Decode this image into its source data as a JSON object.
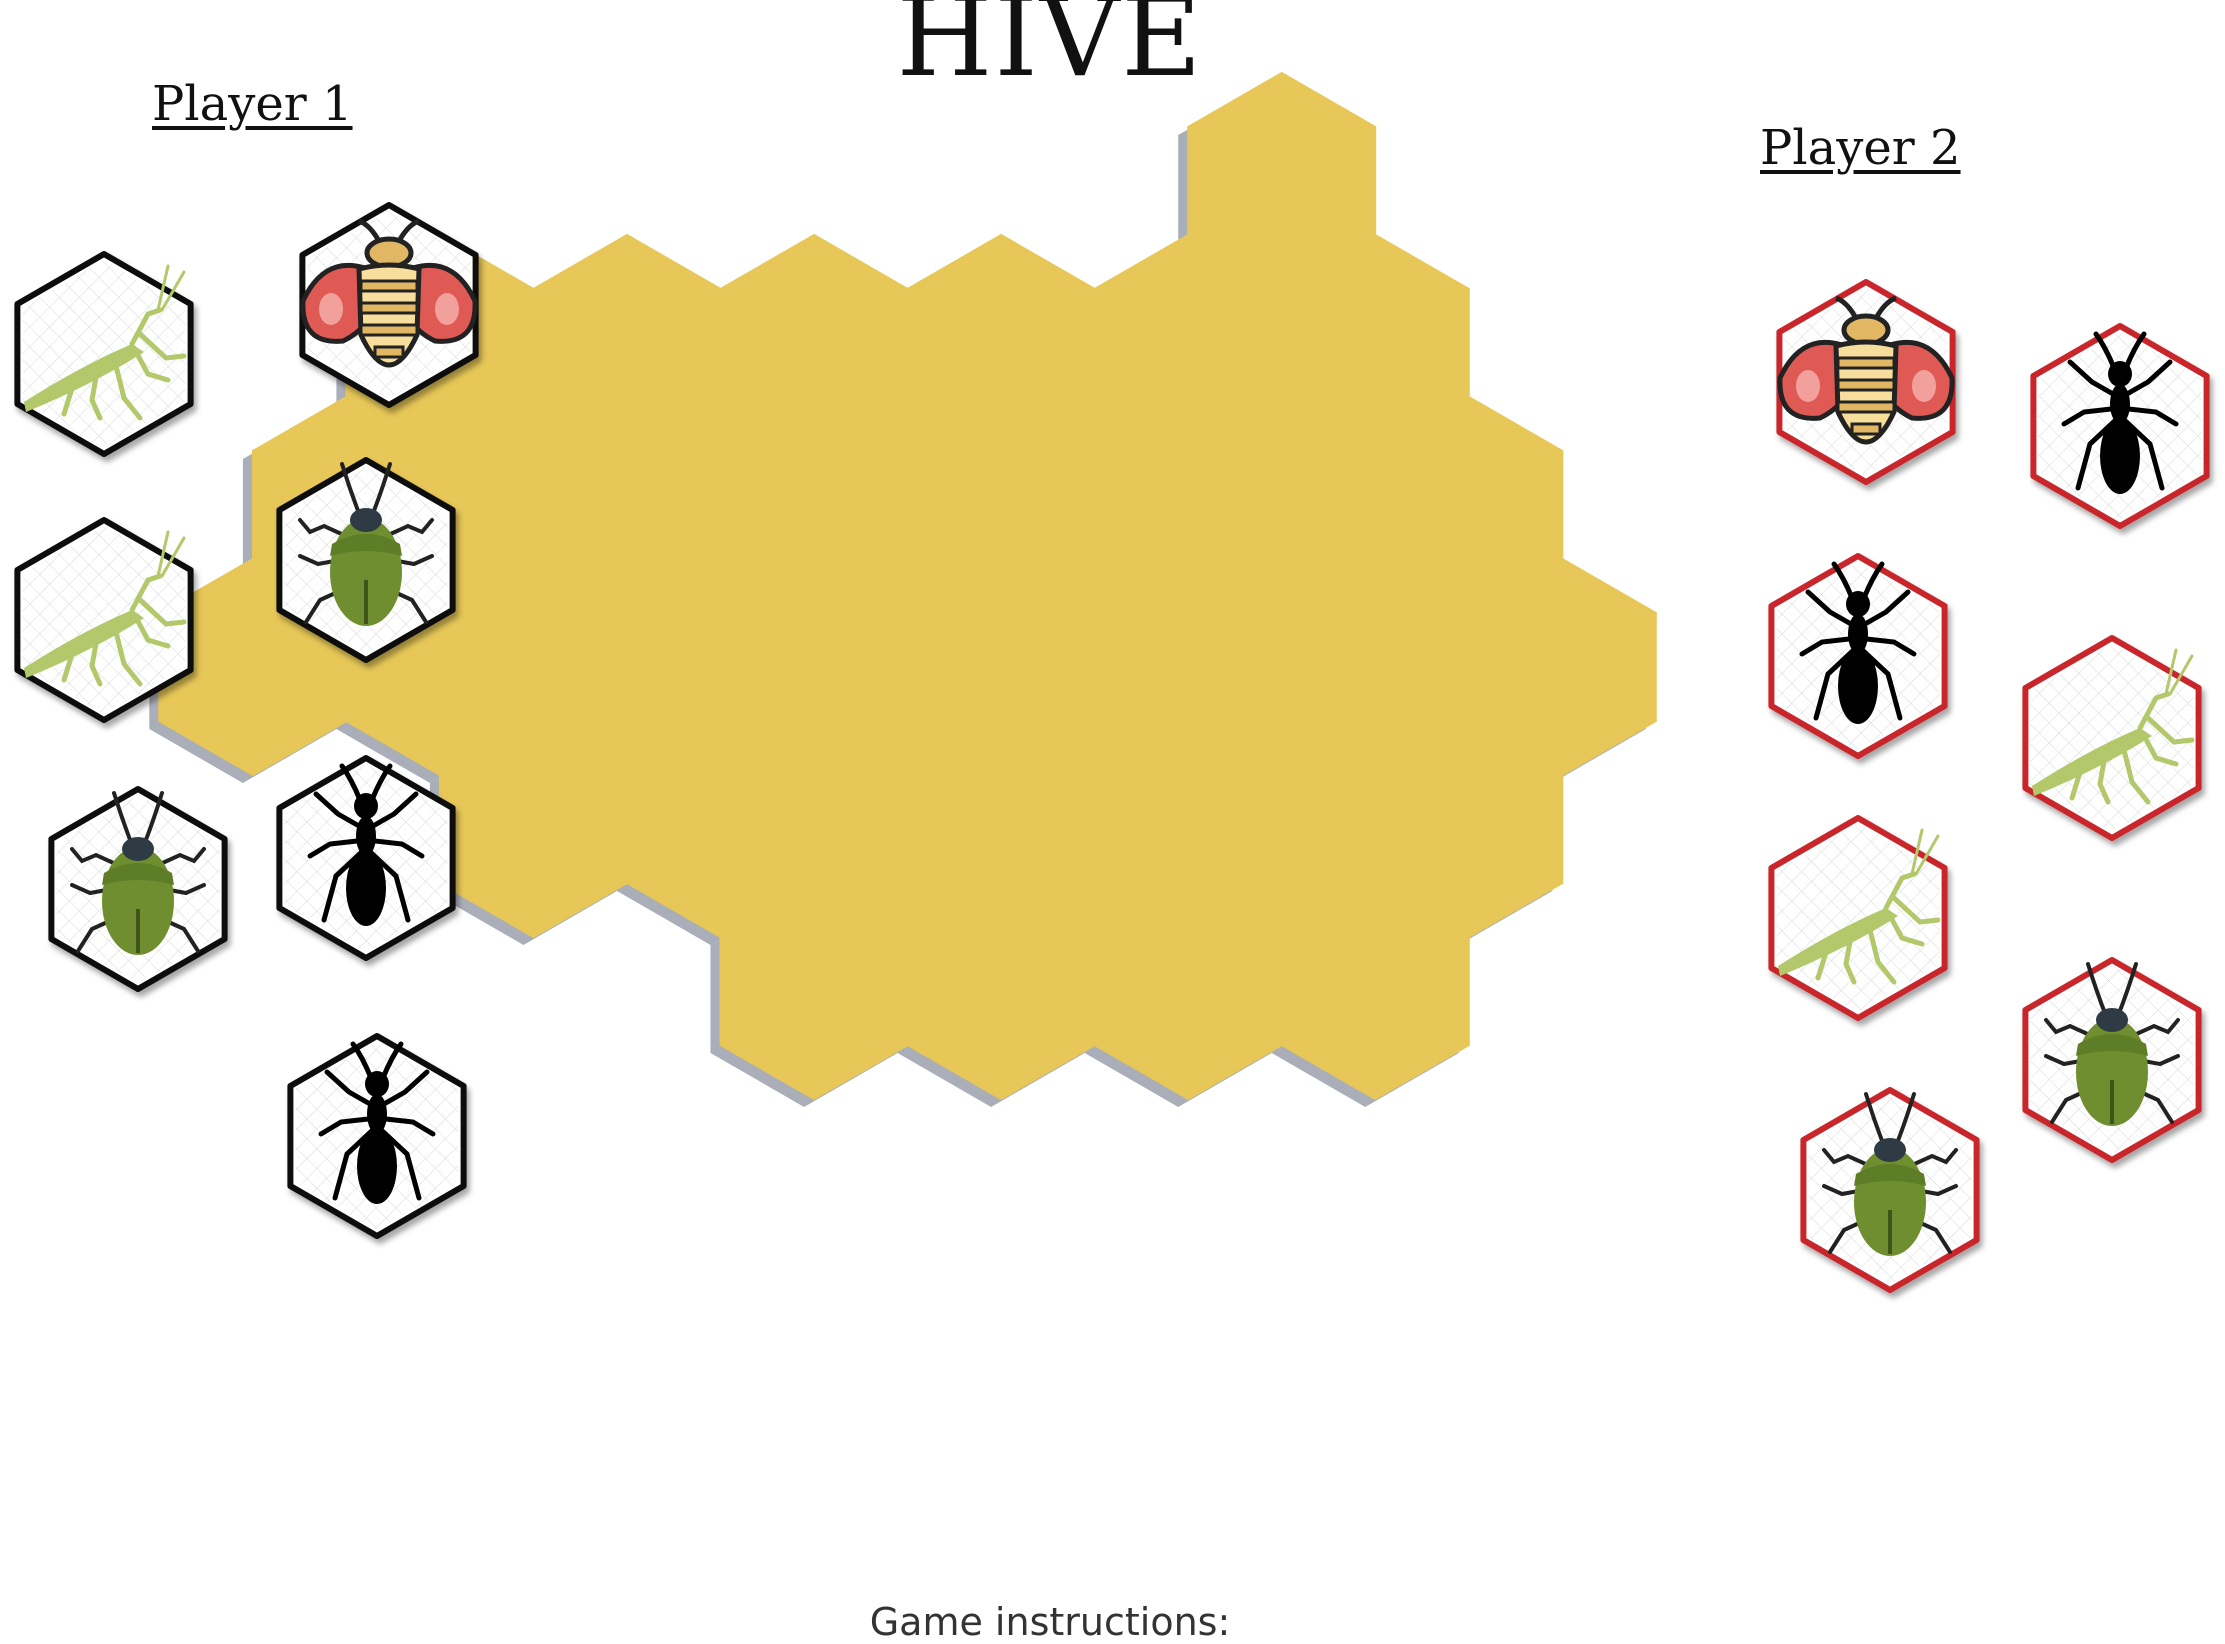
{
  "game": {
    "title": "HIVE",
    "instructions_label": "Game instructions:",
    "colors": {
      "board_fill": "#E6C757",
      "board_shadow": "#A9AEB8",
      "player1_border": "#111111",
      "player2_border": "#C8252C",
      "ladybug_red": "#E05A55",
      "bee_stripe_light": "#F7DE9C",
      "bee_stripe_dark": "#E2B764",
      "beetle_green": "#6F8E2F",
      "mantis_green": "#B3C86A"
    }
  },
  "players": [
    {
      "label": "Player 1",
      "pieces": [
        "mantis-icon",
        "ladybug-icon",
        "mantis-icon",
        "beetle-icon",
        "beetle-icon",
        "ant-icon",
        "ant-icon"
      ]
    },
    {
      "label": "Player 2",
      "pieces": [
        "ladybug-icon",
        "ant-icon",
        "ant-icon",
        "mantis-icon",
        "mantis-icon",
        "beetle-icon",
        "beetle-icon"
      ]
    }
  ],
  "board": {
    "cell_count": 28
  }
}
